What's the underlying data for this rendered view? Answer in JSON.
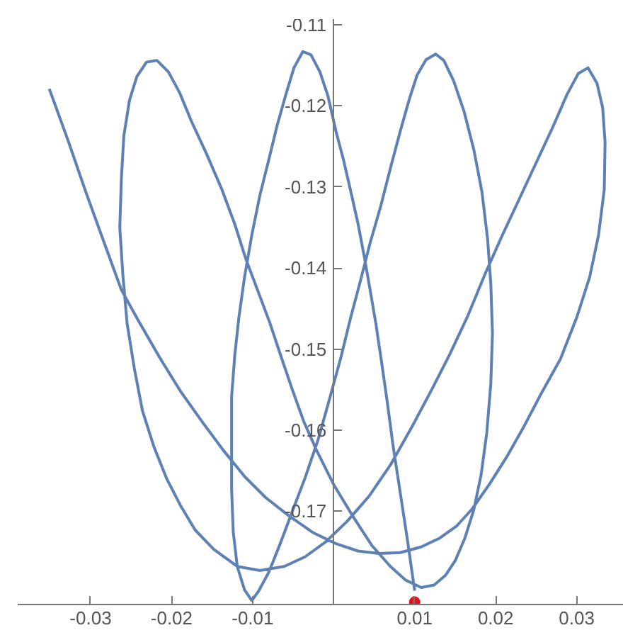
{
  "chart_data": {
    "type": "line",
    "xlim": [
      -0.039,
      0.0358
    ],
    "ylim": [
      -0.1815,
      -0.1093
    ],
    "xticks": [
      -0.03,
      -0.02,
      -0.01,
      0.01,
      0.02,
      0.03
    ],
    "yticks": [
      -0.11,
      -0.12,
      -0.13,
      -0.14,
      -0.15,
      -0.16,
      -0.17
    ],
    "series": [
      {
        "color": "#5e81b5",
        "x": [
          -0.0351,
          -0.0327,
          -0.0306,
          -0.0285,
          -0.0262,
          -0.0241,
          -0.0215,
          -0.0189,
          -0.0162,
          -0.0136,
          -0.011,
          -0.0084,
          -0.0056,
          -0.0026,
          0.0003,
          0.003,
          0.0056,
          0.0082,
          0.0108,
          0.0131,
          0.0152,
          0.0171,
          0.0192,
          0.0213,
          0.0234,
          0.0255,
          0.028,
          0.03,
          0.0316,
          0.0327,
          0.0334,
          0.0335,
          0.0332,
          0.0325,
          0.0314,
          0.0302,
          0.0288,
          0.0271,
          0.025,
          0.0229,
          0.0208,
          0.0187,
          0.0166,
          0.0143,
          0.0121,
          0.0096,
          0.007,
          0.0044,
          0.0017,
          -0.0009,
          -0.0035,
          -0.0061,
          -0.0091,
          -0.0119,
          -0.0148,
          -0.0171,
          -0.0189,
          -0.0206,
          -0.0222,
          -0.0236,
          -0.0246,
          -0.0255,
          -0.026,
          -0.0264,
          -0.0262,
          -0.0259,
          -0.0252,
          -0.0243,
          -0.0231,
          -0.0218,
          -0.0204,
          -0.019,
          -0.0176,
          -0.0157,
          -0.0138,
          -0.0122,
          -0.0108,
          -0.0094,
          -0.0079,
          -0.0065,
          -0.0051,
          -0.0037,
          -0.0021,
          0.0,
          0.0023,
          0.0047,
          0.007,
          0.0089,
          0.0108,
          0.0124,
          0.0138,
          0.015,
          0.0162,
          0.0173,
          0.0182,
          0.0189,
          0.0194,
          0.0196,
          0.0194,
          0.019,
          0.0183,
          0.0173,
          0.0161,
          0.0148,
          0.0136,
          0.0126,
          0.0114,
          0.0103,
          0.0093,
          0.0082,
          0.007,
          0.0058,
          0.0045,
          0.0033,
          0.0021,
          0.0009,
          -0.0005,
          -0.0019,
          -0.0035,
          -0.0051,
          -0.0066,
          -0.008,
          -0.0093,
          -0.0101,
          -0.011,
          -0.0119,
          -0.0124,
          -0.0126,
          -0.0126,
          -0.0126,
          -0.0122,
          -0.0117,
          -0.011,
          -0.0101,
          -0.0091,
          -0.008,
          -0.007,
          -0.0059,
          -0.0049,
          -0.0038,
          -0.0028,
          -0.0017,
          -0.0007,
          0.0003,
          0.0012,
          0.0021,
          0.003,
          0.0038,
          0.0045,
          0.0052,
          0.0059,
          0.0066,
          0.0073,
          0.0082,
          0.0091,
          0.01
        ],
        "values": [
          -0.1179,
          -0.1245,
          -0.1306,
          -0.1364,
          -0.1427,
          -0.1465,
          -0.151,
          -0.1552,
          -0.159,
          -0.1625,
          -0.1657,
          -0.1683,
          -0.1705,
          -0.1726,
          -0.174,
          -0.1749,
          -0.1752,
          -0.1751,
          -0.1744,
          -0.1733,
          -0.1718,
          -0.1697,
          -0.1667,
          -0.1634,
          -0.1597,
          -0.1557,
          -0.1512,
          -0.1461,
          -0.1411,
          -0.1359,
          -0.1303,
          -0.1245,
          -0.1202,
          -0.1172,
          -0.1153,
          -0.116,
          -0.1186,
          -0.1225,
          -0.127,
          -0.1315,
          -0.136,
          -0.1407,
          -0.1458,
          -0.1507,
          -0.155,
          -0.1597,
          -0.1643,
          -0.1681,
          -0.1712,
          -0.1737,
          -0.1756,
          -0.1768,
          -0.1773,
          -0.1768,
          -0.1747,
          -0.1723,
          -0.1693,
          -0.166,
          -0.162,
          -0.1576,
          -0.1524,
          -0.1468,
          -0.1411,
          -0.135,
          -0.1289,
          -0.1237,
          -0.1193,
          -0.1164,
          -0.1146,
          -0.1144,
          -0.1158,
          -0.1184,
          -0.1218,
          -0.1259,
          -0.1303,
          -0.1346,
          -0.139,
          -0.1427,
          -0.1467,
          -0.1509,
          -0.155,
          -0.1589,
          -0.1625,
          -0.1667,
          -0.1705,
          -0.1742,
          -0.1768,
          -0.1785,
          -0.1794,
          -0.1791,
          -0.1779,
          -0.1761,
          -0.1733,
          -0.1698,
          -0.1655,
          -0.1603,
          -0.1542,
          -0.1481,
          -0.142,
          -0.1364,
          -0.1306,
          -0.1254,
          -0.1207,
          -0.1169,
          -0.1144,
          -0.1136,
          -0.1143,
          -0.1162,
          -0.1193,
          -0.1232,
          -0.1277,
          -0.1324,
          -0.1369,
          -0.1416,
          -0.1461,
          -0.151,
          -0.1561,
          -0.1611,
          -0.1658,
          -0.17,
          -0.174,
          -0.1775,
          -0.1799,
          -0.181,
          -0.1797,
          -0.1768,
          -0.1725,
          -0.1672,
          -0.1611,
          -0.1559,
          -0.1507,
          -0.1461,
          -0.1411,
          -0.1359,
          -0.131,
          -0.1266,
          -0.1225,
          -0.1186,
          -0.1153,
          -0.1133,
          -0.1137,
          -0.1158,
          -0.1188,
          -0.1232,
          -0.1266,
          -0.1305,
          -0.1345,
          -0.1387,
          -0.1427,
          -0.1468,
          -0.1515,
          -0.1564,
          -0.1617,
          -0.1676,
          -0.1735,
          -0.1798
        ]
      },
      {
        "type": "scatter",
        "color": "#e0141c",
        "marker": "circle",
        "x": [
          0.01
        ],
        "values": [
          -0.1812
        ]
      }
    ]
  }
}
